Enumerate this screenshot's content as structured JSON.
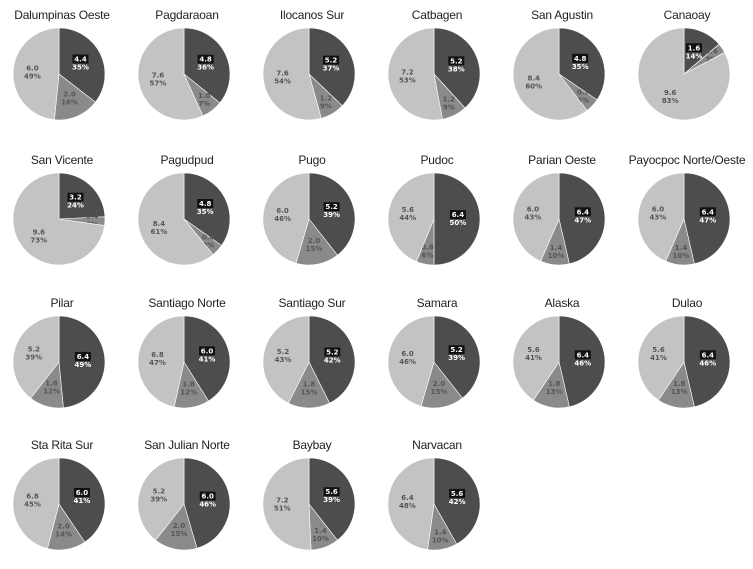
{
  "chart_data": [
    {
      "type": "pie",
      "title": "Dalumpinas Oeste",
      "slices": [
        {
          "value": 4.4,
          "percent": "35%",
          "color": "#4d4d4d",
          "boxed": true
        },
        {
          "value": 2.0,
          "percent": "16%",
          "color": "#8a8a8a"
        },
        {
          "value": 6.0,
          "percent": "49%",
          "color": "#c3c3c3"
        }
      ]
    },
    {
      "type": "pie",
      "title": "Pagdaraoan",
      "slices": [
        {
          "value": 4.8,
          "percent": "36%",
          "color": "#4d4d4d",
          "boxed": true
        },
        {
          "value": 1.0,
          "percent": "7%",
          "color": "#8a8a8a"
        },
        {
          "value": 7.6,
          "percent": "57%",
          "color": "#c3c3c3"
        }
      ]
    },
    {
      "type": "pie",
      "title": "Ilocanos Sur",
      "slices": [
        {
          "value": 5.2,
          "percent": "37%",
          "color": "#4d4d4d",
          "boxed": true
        },
        {
          "value": 1.2,
          "percent": "9%",
          "color": "#8a8a8a"
        },
        {
          "value": 7.6,
          "percent": "54%",
          "color": "#c3c3c3"
        }
      ]
    },
    {
      "type": "pie",
      "title": "Catbagen",
      "slices": [
        {
          "value": 5.2,
          "percent": "38%",
          "color": "#4d4d4d",
          "boxed": true
        },
        {
          "value": 1.2,
          "percent": "9%",
          "color": "#8a8a8a"
        },
        {
          "value": 7.2,
          "percent": "53%",
          "color": "#c3c3c3"
        }
      ]
    },
    {
      "type": "pie",
      "title": "San Agustin",
      "slices": [
        {
          "value": 4.8,
          "percent": "35%",
          "color": "#4d4d4d",
          "boxed": true
        },
        {
          "value": 0.7,
          "percent": "5%",
          "color": "#8a8a8a"
        },
        {
          "value": 8.4,
          "percent": "60%",
          "color": "#c3c3c3"
        }
      ]
    },
    {
      "type": "pie",
      "title": "Canaoay",
      "slices": [
        {
          "value": 1.6,
          "percent": "14%",
          "color": "#4d4d4d",
          "boxed": true
        },
        {
          "value": 0.4,
          "percent": "3%",
          "color": "#8a8a8a"
        },
        {
          "value": 9.6,
          "percent": "83%",
          "color": "#c3c3c3"
        }
      ]
    },
    {
      "type": "pie",
      "title": "San Vicente",
      "slices": [
        {
          "value": 3.2,
          "percent": "24%",
          "color": "#4d4d4d",
          "boxed": true
        },
        {
          "value": 0.4,
          "percent": "3%",
          "color": "#8a8a8a"
        },
        {
          "value": 9.6,
          "percent": "73%",
          "color": "#c3c3c3"
        }
      ]
    },
    {
      "type": "pie",
      "title": "Pagudpud",
      "slices": [
        {
          "value": 4.8,
          "percent": "35%",
          "color": "#4d4d4d",
          "boxed": true
        },
        {
          "value": 0.6,
          "percent": "4%",
          "color": "#8a8a8a"
        },
        {
          "value": 8.4,
          "percent": "61%",
          "color": "#c3c3c3"
        }
      ]
    },
    {
      "type": "pie",
      "title": "Pugo",
      "slices": [
        {
          "value": 5.2,
          "percent": "39%",
          "color": "#4d4d4d",
          "boxed": true
        },
        {
          "value": 2.0,
          "percent": "15%",
          "color": "#8a8a8a"
        },
        {
          "value": 6.0,
          "percent": "46%",
          "color": "#c3c3c3"
        }
      ]
    },
    {
      "type": "pie",
      "title": "Pudoc",
      "slices": [
        {
          "value": 6.4,
          "percent": "50%",
          "color": "#4d4d4d",
          "boxed": true
        },
        {
          "value": 0.8,
          "percent": "6%",
          "color": "#8a8a8a"
        },
        {
          "value": 5.6,
          "percent": "44%",
          "color": "#c3c3c3"
        }
      ]
    },
    {
      "type": "pie",
      "title": "Parian Oeste",
      "slices": [
        {
          "value": 6.4,
          "percent": "47%",
          "color": "#4d4d4d",
          "boxed": true
        },
        {
          "value": 1.4,
          "percent": "10%",
          "color": "#8a8a8a"
        },
        {
          "value": 6.0,
          "percent": "43%",
          "color": "#c3c3c3"
        }
      ]
    },
    {
      "type": "pie",
      "title": "Payocpoc Norte/Oeste",
      "slices": [
        {
          "value": 6.4,
          "percent": "47%",
          "color": "#4d4d4d",
          "boxed": true
        },
        {
          "value": 1.4,
          "percent": "10%",
          "color": "#8a8a8a"
        },
        {
          "value": 6.0,
          "percent": "43%",
          "color": "#c3c3c3"
        }
      ]
    },
    {
      "type": "pie",
      "title": "Pilar",
      "slices": [
        {
          "value": 6.4,
          "percent": "49%",
          "color": "#4d4d4d",
          "boxed": true
        },
        {
          "value": 1.6,
          "percent": "12%",
          "color": "#8a8a8a"
        },
        {
          "value": 5.2,
          "percent": "39%",
          "color": "#c3c3c3"
        }
      ]
    },
    {
      "type": "pie",
      "title": "Santiago Norte",
      "slices": [
        {
          "value": 6.0,
          "percent": "41%",
          "color": "#4d4d4d",
          "boxed": true
        },
        {
          "value": 1.8,
          "percent": "12%",
          "color": "#8a8a8a"
        },
        {
          "value": 6.8,
          "percent": "47%",
          "color": "#c3c3c3"
        }
      ]
    },
    {
      "type": "pie",
      "title": "Santiago Sur",
      "slices": [
        {
          "value": 5.2,
          "percent": "42%",
          "color": "#4d4d4d",
          "boxed": true
        },
        {
          "value": 1.8,
          "percent": "15%",
          "color": "#8a8a8a"
        },
        {
          "value": 5.2,
          "percent": "43%",
          "color": "#c3c3c3"
        }
      ]
    },
    {
      "type": "pie",
      "title": "Samara",
      "slices": [
        {
          "value": 5.2,
          "percent": "39%",
          "color": "#4d4d4d",
          "boxed": true
        },
        {
          "value": 2.0,
          "percent": "15%",
          "color": "#8a8a8a"
        },
        {
          "value": 6.0,
          "percent": "46%",
          "color": "#c3c3c3"
        }
      ]
    },
    {
      "type": "pie",
      "title": "Alaska",
      "slices": [
        {
          "value": 6.4,
          "percent": "46%",
          "color": "#4d4d4d",
          "boxed": true
        },
        {
          "value": 1.8,
          "percent": "13%",
          "color": "#8a8a8a"
        },
        {
          "value": 5.6,
          "percent": "41%",
          "color": "#c3c3c3"
        }
      ]
    },
    {
      "type": "pie",
      "title": "Dulao",
      "slices": [
        {
          "value": 6.4,
          "percent": "46%",
          "color": "#4d4d4d",
          "boxed": true
        },
        {
          "value": 1.8,
          "percent": "13%",
          "color": "#8a8a8a"
        },
        {
          "value": 5.6,
          "percent": "41%",
          "color": "#c3c3c3"
        }
      ]
    },
    {
      "type": "pie",
      "title": "Sta Rita Sur",
      "slices": [
        {
          "value": 6.0,
          "percent": "41%",
          "color": "#4d4d4d",
          "boxed": true
        },
        {
          "value": 2.0,
          "percent": "14%",
          "color": "#8a8a8a"
        },
        {
          "value": 6.8,
          "percent": "45%",
          "color": "#c3c3c3"
        }
      ]
    },
    {
      "type": "pie",
      "title": "San Julian Norte",
      "slices": [
        {
          "value": 6.0,
          "percent": "46%",
          "color": "#4d4d4d",
          "boxed": true
        },
        {
          "value": 2.0,
          "percent": "15%",
          "color": "#8a8a8a"
        },
        {
          "value": 5.2,
          "percent": "39%",
          "color": "#c3c3c3"
        }
      ]
    },
    {
      "type": "pie",
      "title": "Baybay",
      "slices": [
        {
          "value": 5.6,
          "percent": "39%",
          "color": "#4d4d4d",
          "boxed": true
        },
        {
          "value": 1.4,
          "percent": "10%",
          "color": "#8a8a8a"
        },
        {
          "value": 7.2,
          "percent": "51%",
          "color": "#c3c3c3"
        }
      ]
    },
    {
      "type": "pie",
      "title": "Narvacan",
      "slices": [
        {
          "value": 5.6,
          "percent": "42%",
          "color": "#4d4d4d",
          "boxed": true
        },
        {
          "value": 1.4,
          "percent": "10%",
          "color": "#8a8a8a"
        },
        {
          "value": 6.4,
          "percent": "48%",
          "color": "#c3c3c3"
        }
      ]
    }
  ]
}
